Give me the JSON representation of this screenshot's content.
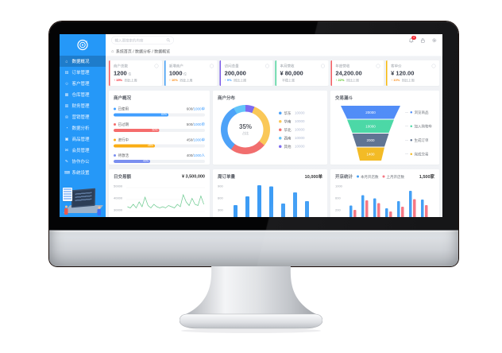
{
  "app": {
    "sidebar": {
      "bg": "#2598f8",
      "items": [
        {
          "label": "数据概况",
          "icon": "⌂",
          "active": true
        },
        {
          "label": "订单管理",
          "icon": "▤",
          "active": false
        },
        {
          "label": "客户管理",
          "icon": "☺",
          "active": false
        },
        {
          "label": "仓库管理",
          "icon": "▦",
          "active": false
        },
        {
          "label": "财务管理",
          "icon": "▥",
          "active": false
        },
        {
          "label": "营销管理",
          "icon": "◎",
          "active": false
        },
        {
          "label": "数据分析",
          "icon": "◔",
          "active": false
        },
        {
          "label": "商品管理",
          "icon": "▣",
          "active": false
        },
        {
          "label": "会员管理",
          "icon": "✉",
          "active": false
        },
        {
          "label": "协作办公",
          "icon": "✎",
          "active": false
        },
        {
          "label": "系统设置",
          "icon": "⌨",
          "active": false
        }
      ]
    },
    "header": {
      "search_placeholder": "输入要搜索的内容",
      "notification_badge": "4"
    },
    "breadcrumb": {
      "home_icon": "⌂",
      "path_text": "系统首页 / 数据分析 / 数据概览"
    },
    "kpis": [
      {
        "title": "商户总数",
        "value": "1200",
        "unit": "位",
        "trend": "↑ 15%",
        "trend_color": "#f5222d",
        "note": "同比上周",
        "accent": "#f5565c"
      },
      {
        "title": "新增商户",
        "value": "1000",
        "unit": "位",
        "trend": "↑ 10%",
        "trend_color": "#fa8c16",
        "note": "同比上周",
        "accent": "#3d9cf5"
      },
      {
        "title": "访问总量",
        "value": "200,000",
        "unit": "",
        "trend": "↑ 9%",
        "trend_color": "#409eff",
        "note": "同比上周",
        "accent": "#7b5be8"
      },
      {
        "title": "本月营收",
        "value": "¥ 80,000",
        "unit": "",
        "trend": "",
        "trend_color": "#9aa0a8",
        "note": "平稳上涨",
        "accent": "#4fd69c"
      },
      {
        "title": "年度营收",
        "value": "24,200.00",
        "unit": "",
        "trend": "↑ 22%",
        "trend_color": "#52c41a",
        "note": "同比上周",
        "accent": "#f5565c"
      },
      {
        "title": "客单价",
        "value": "¥ 120.00",
        "unit": "",
        "trend": "↑ 10%",
        "trend_color": "#fa8c16",
        "note": "同比上周",
        "accent": "#f7b500"
      }
    ]
  },
  "chart_data": [
    {
      "type": "progress",
      "title": "商户概况",
      "rows": [
        {
          "label": "已使用",
          "color": "#409eff",
          "value_left": "600/",
          "value_right": "1000单",
          "pct": "60%"
        },
        {
          "label": "已过期",
          "color": "#f56c6c",
          "value_left": "500/",
          "value_right": "1000单",
          "pct": "50%"
        },
        {
          "label": "进行中",
          "color": "#faad14",
          "value_left": "450/",
          "value_right": "1000单",
          "pct": "45%"
        },
        {
          "label": "待激活",
          "color": "#7a8ff0",
          "value_left": "400/",
          "value_right": "1000人",
          "pct": "40%"
        }
      ]
    },
    {
      "type": "pie",
      "title": "商户分布",
      "center": "35%",
      "center_sub": "占比",
      "segments": [
        {
          "color": "#7d6bf0",
          "pct": 6
        },
        {
          "color": "#fac858",
          "pct": 30
        },
        {
          "color": "#f16e6e",
          "pct": 24
        },
        {
          "color": "#4da2f8",
          "pct": 32
        },
        {
          "color": "#62c5f9",
          "pct": 8
        }
      ],
      "legend": [
        {
          "label": "华东",
          "value": "10000",
          "color": "#4da2f8"
        },
        {
          "label": "华南",
          "value": "10000",
          "color": "#fac858"
        },
        {
          "label": "华北",
          "value": "10000",
          "color": "#f16e6e"
        },
        {
          "label": "西南",
          "value": "10000",
          "color": "#62c5f9"
        },
        {
          "label": "其他",
          "value": "10000",
          "color": "#7d6bf0"
        }
      ]
    },
    {
      "type": "funnel",
      "title": "交易漏斗",
      "layers": [
        {
          "value": "20000",
          "label": "浏览商品",
          "color": "#4a88f7"
        },
        {
          "value": "10000",
          "label": "加入购物车",
          "color": "#45d6a3"
        },
        {
          "value": "2000",
          "label": "生成订单",
          "color": "#5a6f8f"
        },
        {
          "value": "1400",
          "label": "完成交易",
          "color": "#f3b81d"
        }
      ]
    },
    {
      "type": "line",
      "title": "日交易额",
      "total": "¥ 3,500,000",
      "color": "#6ac98e",
      "yticks": [
        "50000",
        "40000",
        "30000"
      ],
      "ymin": 30000,
      "ymax": 50000,
      "points": [
        34000,
        33000,
        36000,
        33000,
        38000,
        34000,
        42000,
        35000,
        33000,
        36000,
        34000,
        33000,
        34000,
        33000,
        35000,
        34000,
        33000,
        36000,
        34000,
        44000,
        38000,
        35000,
        41000,
        36000,
        35000,
        43000,
        36000
      ]
    },
    {
      "type": "bar",
      "title": "周订单量",
      "total": "10,000单",
      "color": "#3d9cf5",
      "yticks": [
        "900",
        "600",
        "300"
      ],
      "max": 900,
      "values": [
        320,
        560,
        860,
        830,
        360,
        660,
        430
      ]
    },
    {
      "type": "bar",
      "title": "开店统计",
      "total": "1,500家",
      "yticks": [
        "1000",
        "600",
        "200"
      ],
      "max": 1000,
      "legend": [
        {
          "label": "本月开店数",
          "color": "#3d9cf5"
        },
        {
          "label": "上月开店数",
          "color": "#f5737f"
        }
      ],
      "series": [
        {
          "name": "本月开店数",
          "color": "#3d9cf5",
          "values": [
            340,
            660,
            560,
            260,
            480,
            780,
            520
          ]
        },
        {
          "name": "上月开店数",
          "color": "#f5737f",
          "values": [
            210,
            500,
            420,
            170,
            310,
            540,
            360
          ]
        }
      ]
    }
  ]
}
